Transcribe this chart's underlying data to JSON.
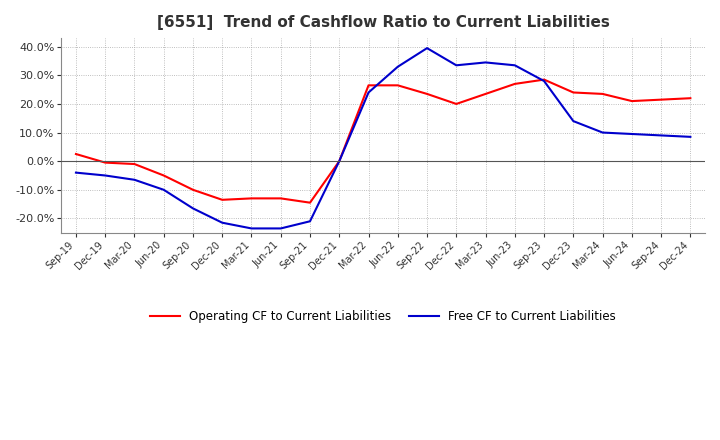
{
  "title": "[6551]  Trend of Cashflow Ratio to Current Liabilities",
  "title_fontsize": 11,
  "ylim": [
    -0.25,
    0.43
  ],
  "yticks": [
    -0.2,
    -0.1,
    0.0,
    0.1,
    0.2,
    0.3,
    0.4
  ],
  "ytick_labels": [
    "-20.0%",
    "-10.0%",
    "0.0%",
    "10.0%",
    "20.0%",
    "30.0%",
    "40.0%"
  ],
  "background_color": "#ffffff",
  "plot_bg_color": "#ffffff",
  "grid_color": "#aaaaaa",
  "x_labels": [
    "Sep-19",
    "Dec-19",
    "Mar-20",
    "Jun-20",
    "Sep-20",
    "Dec-20",
    "Mar-21",
    "Jun-21",
    "Sep-21",
    "Dec-21",
    "Mar-22",
    "Jun-22",
    "Sep-22",
    "Dec-22",
    "Mar-23",
    "Jun-23",
    "Sep-23",
    "Dec-23",
    "Mar-24",
    "Jun-24",
    "Sep-24",
    "Dec-24"
  ],
  "operating_cf": [
    0.025,
    -0.005,
    -0.01,
    -0.05,
    -0.1,
    -0.135,
    -0.13,
    -0.13,
    -0.145,
    0.0,
    0.265,
    0.265,
    0.235,
    0.2,
    0.235,
    0.27,
    0.285,
    0.24,
    0.235,
    0.21,
    0.215,
    0.22
  ],
  "free_cf": [
    -0.04,
    -0.05,
    -0.065,
    -0.1,
    -0.165,
    -0.215,
    -0.235,
    -0.235,
    -0.21,
    0.0,
    0.24,
    0.33,
    0.395,
    0.335,
    0.345,
    0.335,
    0.28,
    0.14,
    0.1,
    0.095,
    0.09,
    0.085
  ],
  "operating_color": "#ff0000",
  "free_color": "#0000cc",
  "legend_labels": [
    "Operating CF to Current Liabilities",
    "Free CF to Current Liabilities"
  ],
  "linewidth": 1.5
}
